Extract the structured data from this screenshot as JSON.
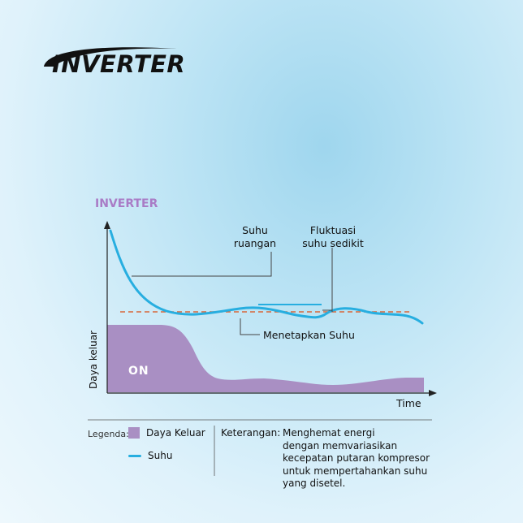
{
  "logo": {
    "text": "INVERTER"
  },
  "diagram": {
    "title": "INVERTER",
    "labels": {
      "room_temp_line1": "Suhu",
      "room_temp_line2": "ruangan",
      "fluct_line1": "Fluktuasi",
      "fluct_line2": "suhu sedikit",
      "setpoint": "Menetapkan Suhu",
      "on": "ON",
      "y_axis": "Daya keluar",
      "x_axis": "Time"
    },
    "colors": {
      "power_fill": "#a98fc3",
      "temperature_line": "#27aee0",
      "setpoint_line": "#d8673a",
      "title": "#a97cc6"
    }
  },
  "legend": {
    "title": "Legenda:",
    "items": [
      {
        "label": "Daya Keluar",
        "swatch": "box"
      },
      {
        "label": "Suhu",
        "swatch": "line"
      }
    ]
  },
  "notes": {
    "key": "Keterangan:",
    "lines": [
      "Menghemat energi",
      "dengan memvariasikan",
      "kecepatan putaran kompresor",
      "untuk mempertahankan suhu",
      "yang disetel."
    ]
  }
}
